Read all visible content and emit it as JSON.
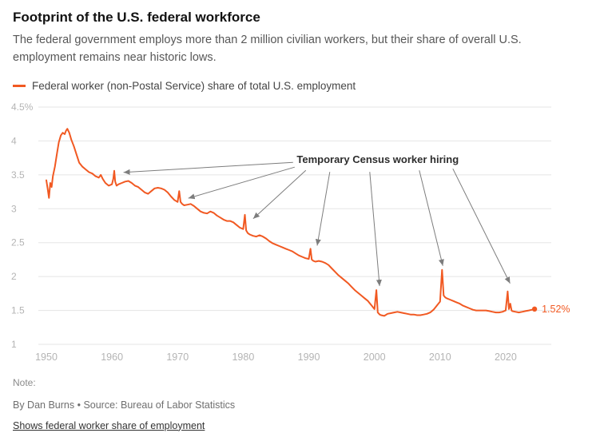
{
  "header": {
    "title": "Footprint of the U.S. federal workforce",
    "subtitle": "The federal government employs more than 2 million civilian workers, but their share of overall U.S. employment remains near historic lows."
  },
  "legend": {
    "label": "Federal worker (non-Postal Service) share of total U.S. employment"
  },
  "footer": {
    "note_label": "Note:",
    "byline": "By Dan Burns • Source: Bureau of Labor Statistics",
    "toggle": "Shows federal worker share of employment"
  },
  "chart_data": {
    "type": "line",
    "title": "Footprint of the U.S. federal workforce",
    "line_color": "#f15922",
    "grid": true,
    "legend_position": "top",
    "xlim": [
      1950,
      2025
    ],
    "ylim": [
      1,
      4.5
    ],
    "x_ticks": [
      1950,
      1960,
      1970,
      1980,
      1990,
      2000,
      2010,
      2020
    ],
    "y_ticks": [
      4.5,
      4,
      3.5,
      3,
      2.5,
      2,
      1.5,
      1
    ],
    "y_tick_labels": [
      "4.5%",
      "4",
      "3.5",
      "3",
      "2.5",
      "2",
      "1.5",
      "1"
    ],
    "end_value_label": "1.52%",
    "annotation": {
      "text": "Temporary Census worker hiring",
      "x": 2000.5,
      "y": 3.72,
      "targets": [
        {
          "year": 1960,
          "value": 3.56
        },
        {
          "year": 1970,
          "value": 3.25
        },
        {
          "year": 1980,
          "value": 2.9
        },
        {
          "year": 1990,
          "value": 2.41
        },
        {
          "year": 2000,
          "value": 1.8
        },
        {
          "year": 2010,
          "value": 2.1
        },
        {
          "year": 2020,
          "value": 1.78
        }
      ]
    },
    "series": [
      {
        "name": "Federal worker (non-Postal Service) share of total U.S. employment",
        "points": [
          [
            1950.0,
            3.42
          ],
          [
            1950.2,
            3.3
          ],
          [
            1950.4,
            3.16
          ],
          [
            1950.6,
            3.38
          ],
          [
            1950.8,
            3.32
          ],
          [
            1951.0,
            3.48
          ],
          [
            1951.3,
            3.62
          ],
          [
            1951.6,
            3.8
          ],
          [
            1951.9,
            3.98
          ],
          [
            1952.2,
            4.08
          ],
          [
            1952.5,
            4.12
          ],
          [
            1952.8,
            4.1
          ],
          [
            1953.0,
            4.15
          ],
          [
            1953.2,
            4.18
          ],
          [
            1953.5,
            4.12
          ],
          [
            1953.8,
            4.02
          ],
          [
            1954.2,
            3.92
          ],
          [
            1954.6,
            3.8
          ],
          [
            1955.0,
            3.68
          ],
          [
            1955.5,
            3.62
          ],
          [
            1956.0,
            3.58
          ],
          [
            1956.5,
            3.54
          ],
          [
            1957.0,
            3.52
          ],
          [
            1957.5,
            3.48
          ],
          [
            1958.0,
            3.46
          ],
          [
            1958.3,
            3.5
          ],
          [
            1958.6,
            3.44
          ],
          [
            1959.0,
            3.38
          ],
          [
            1959.5,
            3.34
          ],
          [
            1960.0,
            3.36
          ],
          [
            1960.2,
            3.44
          ],
          [
            1960.35,
            3.56
          ],
          [
            1960.5,
            3.4
          ],
          [
            1960.7,
            3.34
          ],
          [
            1961.0,
            3.36
          ],
          [
            1961.5,
            3.38
          ],
          [
            1962.0,
            3.4
          ],
          [
            1962.5,
            3.41
          ],
          [
            1963.0,
            3.38
          ],
          [
            1963.5,
            3.34
          ],
          [
            1964.0,
            3.32
          ],
          [
            1964.5,
            3.28
          ],
          [
            1965.0,
            3.24
          ],
          [
            1965.5,
            3.22
          ],
          [
            1966.0,
            3.26
          ],
          [
            1966.5,
            3.3
          ],
          [
            1967.0,
            3.31
          ],
          [
            1967.5,
            3.3
          ],
          [
            1968.0,
            3.28
          ],
          [
            1968.5,
            3.24
          ],
          [
            1969.0,
            3.18
          ],
          [
            1969.5,
            3.13
          ],
          [
            1970.0,
            3.1
          ],
          [
            1970.25,
            3.26
          ],
          [
            1970.45,
            3.1
          ],
          [
            1970.7,
            3.07
          ],
          [
            1971.0,
            3.05
          ],
          [
            1971.5,
            3.06
          ],
          [
            1972.0,
            3.07
          ],
          [
            1972.5,
            3.04
          ],
          [
            1973.0,
            3.0
          ],
          [
            1973.5,
            2.96
          ],
          [
            1974.0,
            2.94
          ],
          [
            1974.5,
            2.93
          ],
          [
            1975.0,
            2.96
          ],
          [
            1975.5,
            2.94
          ],
          [
            1976.0,
            2.9
          ],
          [
            1976.5,
            2.87
          ],
          [
            1977.0,
            2.84
          ],
          [
            1977.5,
            2.82
          ],
          [
            1978.0,
            2.82
          ],
          [
            1978.5,
            2.8
          ],
          [
            1979.0,
            2.76
          ],
          [
            1979.5,
            2.72
          ],
          [
            1980.0,
            2.7
          ],
          [
            1980.25,
            2.91
          ],
          [
            1980.45,
            2.68
          ],
          [
            1980.7,
            2.64
          ],
          [
            1981.0,
            2.62
          ],
          [
            1981.5,
            2.6
          ],
          [
            1982.0,
            2.59
          ],
          [
            1982.5,
            2.61
          ],
          [
            1983.0,
            2.59
          ],
          [
            1983.5,
            2.56
          ],
          [
            1984.0,
            2.52
          ],
          [
            1984.5,
            2.49
          ],
          [
            1985.0,
            2.47
          ],
          [
            1985.5,
            2.45
          ],
          [
            1986.0,
            2.43
          ],
          [
            1986.5,
            2.41
          ],
          [
            1987.0,
            2.39
          ],
          [
            1987.5,
            2.37
          ],
          [
            1988.0,
            2.34
          ],
          [
            1988.5,
            2.31
          ],
          [
            1989.0,
            2.29
          ],
          [
            1989.5,
            2.27
          ],
          [
            1990.0,
            2.26
          ],
          [
            1990.25,
            2.41
          ],
          [
            1990.45,
            2.25
          ],
          [
            1990.7,
            2.23
          ],
          [
            1991.0,
            2.22
          ],
          [
            1991.5,
            2.23
          ],
          [
            1992.0,
            2.22
          ],
          [
            1992.5,
            2.2
          ],
          [
            1993.0,
            2.17
          ],
          [
            1993.5,
            2.12
          ],
          [
            1994.0,
            2.07
          ],
          [
            1994.5,
            2.02
          ],
          [
            1995.0,
            1.98
          ],
          [
            1995.5,
            1.94
          ],
          [
            1996.0,
            1.9
          ],
          [
            1996.5,
            1.85
          ],
          [
            1997.0,
            1.8
          ],
          [
            1997.5,
            1.76
          ],
          [
            1998.0,
            1.72
          ],
          [
            1998.5,
            1.68
          ],
          [
            1999.0,
            1.64
          ],
          [
            1999.5,
            1.58
          ],
          [
            2000.0,
            1.52
          ],
          [
            2000.3,
            1.8
          ],
          [
            2000.5,
            1.47
          ],
          [
            2000.8,
            1.44
          ],
          [
            2001.0,
            1.43
          ],
          [
            2001.5,
            1.42
          ],
          [
            2002.0,
            1.45
          ],
          [
            2002.5,
            1.46
          ],
          [
            2003.0,
            1.47
          ],
          [
            2003.5,
            1.48
          ],
          [
            2004.0,
            1.47
          ],
          [
            2004.5,
            1.46
          ],
          [
            2005.0,
            1.45
          ],
          [
            2005.5,
            1.44
          ],
          [
            2006.0,
            1.44
          ],
          [
            2006.5,
            1.43
          ],
          [
            2007.0,
            1.43
          ],
          [
            2007.5,
            1.44
          ],
          [
            2008.0,
            1.45
          ],
          [
            2008.5,
            1.47
          ],
          [
            2009.0,
            1.51
          ],
          [
            2009.5,
            1.57
          ],
          [
            2010.0,
            1.63
          ],
          [
            2010.3,
            2.1
          ],
          [
            2010.55,
            1.72
          ],
          [
            2010.8,
            1.69
          ],
          [
            2011.0,
            1.68
          ],
          [
            2011.5,
            1.66
          ],
          [
            2012.0,
            1.64
          ],
          [
            2012.5,
            1.62
          ],
          [
            2013.0,
            1.6
          ],
          [
            2013.5,
            1.57
          ],
          [
            2014.0,
            1.55
          ],
          [
            2014.5,
            1.53
          ],
          [
            2015.0,
            1.51
          ],
          [
            2015.5,
            1.5
          ],
          [
            2016.0,
            1.5
          ],
          [
            2016.5,
            1.5
          ],
          [
            2017.0,
            1.5
          ],
          [
            2017.5,
            1.49
          ],
          [
            2018.0,
            1.48
          ],
          [
            2018.5,
            1.47
          ],
          [
            2019.0,
            1.47
          ],
          [
            2019.5,
            1.48
          ],
          [
            2020.0,
            1.5
          ],
          [
            2020.3,
            1.78
          ],
          [
            2020.5,
            1.52
          ],
          [
            2020.7,
            1.6
          ],
          [
            2020.9,
            1.5
          ],
          [
            2021.0,
            1.49
          ],
          [
            2021.5,
            1.48
          ],
          [
            2022.0,
            1.47
          ],
          [
            2022.5,
            1.48
          ],
          [
            2023.0,
            1.49
          ],
          [
            2023.5,
            1.5
          ],
          [
            2024.0,
            1.51
          ],
          [
            2024.4,
            1.52
          ]
        ]
      }
    ]
  }
}
